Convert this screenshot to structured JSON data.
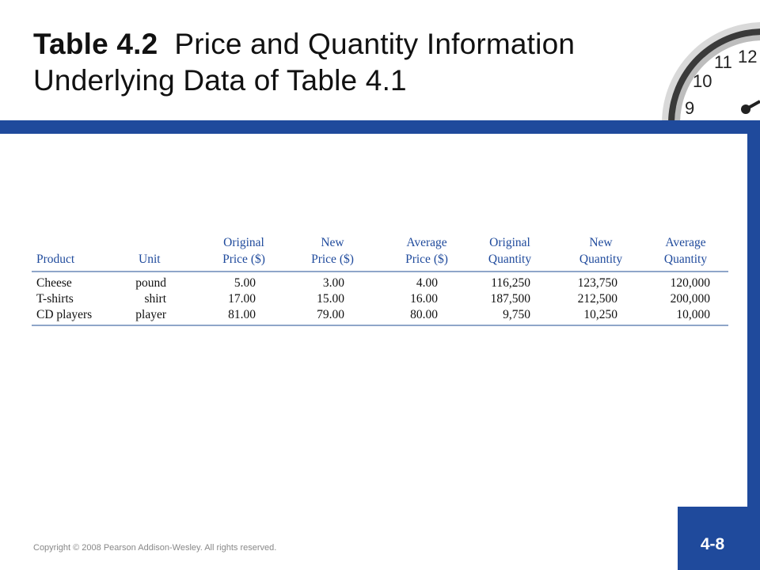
{
  "title": {
    "bold": "Table 4.2",
    "rest": "Price and Quantity Information",
    "line2": "Underlying Data of Table 4.1"
  },
  "clock_numbers": [
    "12",
    "11",
    "10",
    "9"
  ],
  "table": {
    "headers": [
      {
        "line1": "",
        "line2": "Product"
      },
      {
        "line1": "",
        "line2": "Unit"
      },
      {
        "line1": "Original",
        "line2": "Price ($)"
      },
      {
        "line1": "New",
        "line2": "Price ($)"
      },
      {
        "line1": "Average",
        "line2": "Price ($)"
      },
      {
        "line1": "Original",
        "line2": "Quantity"
      },
      {
        "line1": "New",
        "line2": "Quantity"
      },
      {
        "line1": "Average",
        "line2": "Quantity"
      }
    ],
    "rows": [
      [
        "Cheese",
        "pound",
        "5.00",
        "3.00",
        "4.00",
        "116,250",
        "123,750",
        "120,000"
      ],
      [
        "T-shirts",
        "shirt",
        "17.00",
        "15.00",
        "16.00",
        "187,500",
        "212,500",
        "200,000"
      ],
      [
        "CD players",
        "player",
        "81.00",
        "79.00",
        "80.00",
        "9,750",
        "10,250",
        "10,000"
      ]
    ]
  },
  "footer": {
    "copyright": "Copyright © 2008 Pearson Addison-Wesley. All rights reserved.",
    "page_number": "4-8"
  },
  "colors": {
    "accent": "#1f4a9c",
    "header_text": "#1f4a9c",
    "rule": "#8fa6c9"
  }
}
